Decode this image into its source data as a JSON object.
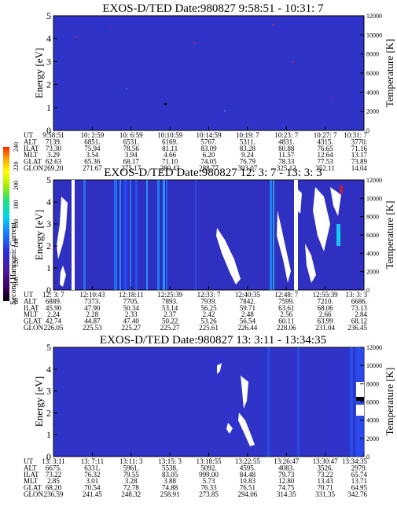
{
  "colorbar": {
    "label": "Second Harmonic Current",
    "ticks": [
      "240",
      "220",
      "200",
      "180",
      "160",
      "140",
      "120",
      "100",
      "80"
    ],
    "colors": [
      "#000000",
      "#3a005a",
      "#5a1aa0",
      "#3030d0",
      "#2060ff",
      "#1aa0ff",
      "#00e0e0",
      "#20e060",
      "#a0f000",
      "#ffff00",
      "#ffa000",
      "#ff3000"
    ]
  },
  "chart_data": [
    {
      "type": "heatmap",
      "title": "EXOS-D/TED   Date:980827   9:58:51 - 10:31: 7",
      "ylabel": "Energy [eV]",
      "ylabel_right": "Temperature [K]",
      "ylim": [
        0,
        5
      ],
      "yticks": [
        "0",
        "1",
        "2",
        "3",
        "4",
        "5"
      ],
      "ylim_right": [
        0,
        12000
      ],
      "yticks_right": [
        "0",
        "2000",
        "4000",
        "6000",
        "8000",
        "10000",
        "12000"
      ],
      "background": "#3033c8",
      "table_rows": [
        "UT",
        "ALT",
        "ILAT",
        "MLT",
        "GLAT",
        "GLON"
      ],
      "table": [
        [
          "9:58:51",
          "10: 2:59",
          "10: 6:59",
          "10:10:59",
          "10:14:59",
          "10:19: 7",
          "10:23: 7",
          "10:27: 7",
          "10:31: 7"
        ],
        [
          "7139.",
          "6851.",
          "6531.",
          "6169.",
          "5767.",
          "5311.",
          "4831.",
          "4315.",
          "3770."
        ],
        [
          "73.30",
          "75.94",
          "78.56",
          "81.11",
          "83.09",
          "83.28",
          "80.88",
          "76.65",
          "71.16"
        ],
        [
          "3.29",
          "3.54",
          "3.94",
          "4.66",
          "6.20",
          "9.24",
          "11.57",
          "12.64",
          "13.17"
        ],
        [
          "62.63",
          "65.36",
          "68.17",
          "71.10",
          "74.05",
          "76.79",
          "78.33",
          "77.53",
          "73.89"
        ],
        [
          "269.20",
          "271.67",
          "275.17",
          "280.43",
          "288.77",
          "303.07",
          "325.12",
          "352.11",
          "14.04"
        ]
      ]
    },
    {
      "type": "heatmap",
      "title": "EXOS-D/TED   Date:980827  12: 3: 7 - 13: 3: 3",
      "ylabel": "Energy [eV]",
      "ylabel_right": "Temperature [K]",
      "ylim": [
        0,
        5
      ],
      "yticks": [
        "0",
        "1",
        "2",
        "3",
        "4",
        "5"
      ],
      "ylim_right": [
        0,
        12000
      ],
      "yticks_right": [
        "0",
        "2000",
        "4000",
        "6000",
        "8000",
        "10000",
        "12000"
      ],
      "background": "#2f2fc2",
      "table_rows": [
        "UT",
        "ALT",
        "ILAT",
        "MLT",
        "GLAT",
        "GLON"
      ],
      "table": [
        [
          "12: 3: 7",
          "12:10:43",
          "12:18:11",
          "12:25:39",
          "12:33: 7",
          "12:40:35",
          "12:48: 7",
          "12:55:39",
          "13: 3: 3"
        ],
        [
          "6889.",
          "7373.",
          "7705.",
          "7893.",
          "7939.",
          "7842.",
          "7599.",
          "7210.",
          "6686."
        ],
        [
          "45.90",
          "47.90",
          "50.34",
          "53.14",
          "56.25",
          "59.71",
          "63.61",
          "68.06",
          "73.13"
        ],
        [
          "2.24",
          "2.28",
          "2.33",
          "2.37",
          "2.42",
          "2.48",
          "2.56",
          "2.66",
          "2.84"
        ],
        [
          "42.74",
          "44.87",
          "47.40",
          "50.22",
          "53.26",
          "56.54",
          "60.11",
          "63.99",
          "68.12"
        ],
        [
          "226.05",
          "225.53",
          "225.27",
          "225.27",
          "225.61",
          "226.44",
          "228.06",
          "231.04",
          "236.45"
        ]
      ]
    },
    {
      "type": "heatmap",
      "title": "EXOS-D/TED   Date:980827  13: 3:11 - 13:34:35",
      "ylabel": "Energy [eV]",
      "ylabel_right": "Temperature [K]",
      "ylim": [
        0,
        5
      ],
      "yticks": [
        "0",
        "1",
        "2",
        "3",
        "4",
        "5"
      ],
      "ylim_right": [
        0,
        12000
      ],
      "yticks_right": [
        "0",
        "2000",
        "4000",
        "6000",
        "8000",
        "10000",
        "12000"
      ],
      "background": "#3033c8",
      "table_rows": [
        "UT",
        "ALT",
        "ILAT",
        "MLT",
        "GLAT",
        "GLON"
      ],
      "table": [
        [
          "13: 3:11",
          "13: 7:11",
          "13:11: 3",
          "13:15: 3",
          "13:18:55",
          "13:22:55",
          "13:26:47",
          "13:30:47",
          "13:34:35"
        ],
        [
          "6675.",
          "6331.",
          "5961.",
          "5538.",
          "5092.",
          "4595.",
          "4083.",
          "3526.",
          "2979."
        ],
        [
          "73.22",
          "76.32",
          "79.55",
          "83.05",
          "999.00",
          "84.48",
          "79.73",
          "73.22",
          "65.74"
        ],
        [
          "2.85",
          "3.01",
          "3.28",
          "3.88",
          "5.73",
          "10.83",
          "12.80",
          "13.43",
          "13.71"
        ],
        [
          "68.20",
          "70.54",
          "72.78",
          "74.88",
          "76.33",
          "76.51",
          "74.75",
          "70.71",
          "64.95"
        ],
        [
          "236.59",
          "241.45",
          "248.32",
          "258.91",
          "273.85",
          "294.06",
          "314.35",
          "331.35",
          "342.76"
        ]
      ]
    }
  ]
}
